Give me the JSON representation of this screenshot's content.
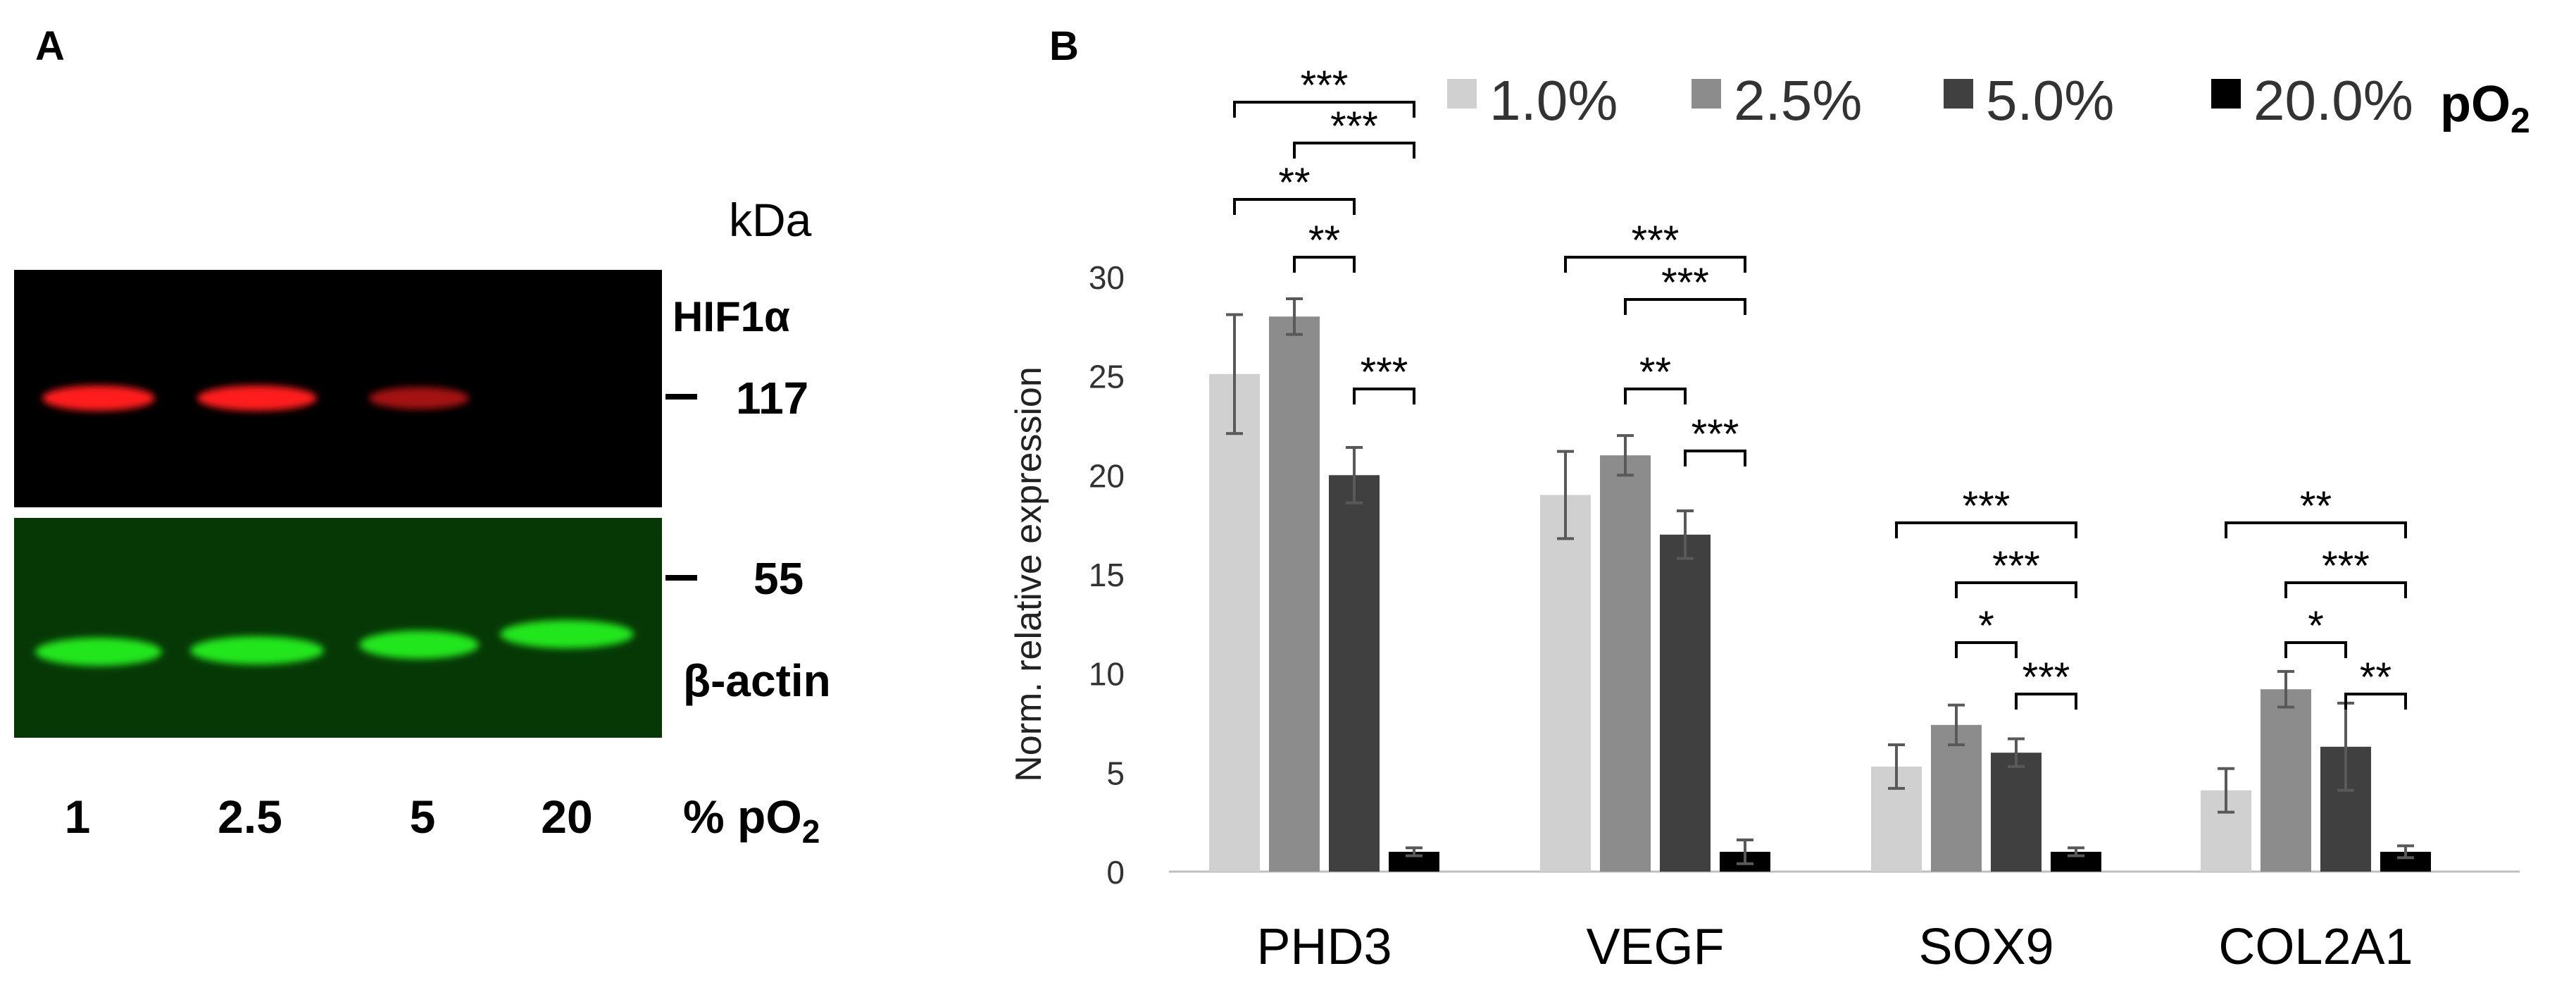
{
  "panel_a": {
    "label": "A",
    "kda_label": "kDa",
    "band_top_label": "HIF1α",
    "marker_upper": "117",
    "marker_lower": "55",
    "band_bottom_label": "β-actin",
    "lanes": [
      "1",
      "2.5",
      "5",
      "20"
    ],
    "lane_unit": "% pO",
    "lane_unit_sub": "2",
    "hif1a_intensity": [
      1.0,
      1.0,
      0.45,
      0.0
    ],
    "actin_intensity": [
      1.0,
      1.0,
      1.0,
      1.0
    ],
    "colors": {
      "hif_band": "#ff1a1a",
      "actin_band": "#22e61e",
      "top_blot_bg": "#000000",
      "bottom_blot_bg": "#063806"
    }
  },
  "chart_data": {
    "type": "bar",
    "panel_label": "B",
    "title": "",
    "xlabel": "",
    "ylabel": "Norm. relative expression",
    "ylim": [
      0,
      30
    ],
    "yticks": [
      0,
      5,
      10,
      15,
      20,
      25,
      30
    ],
    "grid": false,
    "legend_position": "top",
    "legend_suffix": "pO",
    "legend_suffix_sub": "2",
    "categories": [
      "PHD3",
      "VEGF",
      "SOX9",
      "COL2A1"
    ],
    "series": [
      {
        "name": "1.0%",
        "color": "#d0d0d0",
        "values": [
          25.1,
          19.0,
          5.3,
          4.1
        ],
        "errors": [
          3.0,
          2.2,
          1.1,
          1.1
        ]
      },
      {
        "name": "2.5%",
        "color": "#8c8c8c",
        "values": [
          28.0,
          21.0,
          7.4,
          9.2
        ],
        "errors": [
          0.9,
          1.0,
          1.0,
          0.9
        ]
      },
      {
        "name": "5.0%",
        "color": "#404040",
        "values": [
          20.0,
          17.0,
          6.0,
          6.3
        ],
        "errors": [
          1.4,
          1.2,
          0.7,
          2.2
        ]
      },
      {
        "name": "20.0%",
        "color": "#000000",
        "values": [
          1.0,
          1.0,
          1.0,
          1.0
        ],
        "errors": [
          0.2,
          0.6,
          0.2,
          0.3
        ]
      }
    ],
    "significance": [
      {
        "category": 0,
        "from": 0,
        "to": 3,
        "label": "***",
        "level": 0
      },
      {
        "category": 0,
        "from": 1,
        "to": 3,
        "label": "***",
        "level": 1
      },
      {
        "category": 0,
        "from": 0,
        "to": 2,
        "label": "**",
        "level": 2
      },
      {
        "category": 0,
        "from": 1,
        "to": 2,
        "label": "**",
        "level": 3
      },
      {
        "category": 0,
        "from": 2,
        "to": 3,
        "label": "***",
        "level": 5
      },
      {
        "category": 1,
        "from": 0,
        "to": 3,
        "label": "***",
        "level": 3
      },
      {
        "category": 1,
        "from": 1,
        "to": 3,
        "label": "***",
        "level": 4
      },
      {
        "category": 1,
        "from": 1,
        "to": 2,
        "label": "**",
        "level": 5
      },
      {
        "category": 1,
        "from": 2,
        "to": 3,
        "label": "***",
        "level": 6
      },
      {
        "category": 2,
        "from": 0,
        "to": 3,
        "label": "***",
        "level": 7
      },
      {
        "category": 2,
        "from": 1,
        "to": 3,
        "label": "***",
        "level": 8
      },
      {
        "category": 2,
        "from": 1,
        "to": 2,
        "label": "*",
        "level": 9
      },
      {
        "category": 2,
        "from": 2,
        "to": 3,
        "label": "***",
        "level": 10
      },
      {
        "category": 3,
        "from": 0,
        "to": 3,
        "label": "**",
        "level": 7
      },
      {
        "category": 3,
        "from": 1,
        "to": 3,
        "label": "***",
        "level": 8
      },
      {
        "category": 3,
        "from": 1,
        "to": 2,
        "label": "*",
        "level": 9
      },
      {
        "category": 3,
        "from": 2,
        "to": 3,
        "label": "**",
        "level": 10
      }
    ]
  }
}
